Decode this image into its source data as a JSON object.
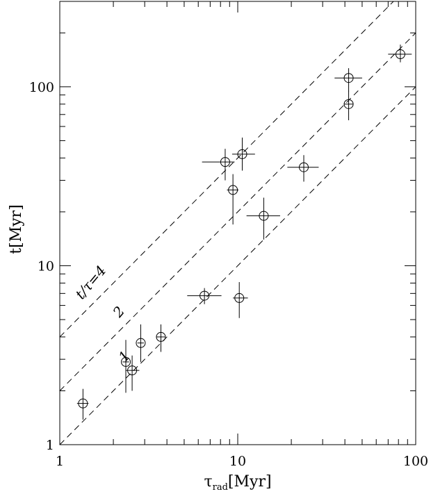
{
  "chart_data": {
    "type": "scatter",
    "title": "",
    "xlabel": "τ",
    "xlabel_sub": "rad",
    "xlabel_unit": "[Myr]",
    "ylabel": "t[Myr]",
    "xscale": "log",
    "yscale": "log",
    "xlim": [
      1,
      100
    ],
    "ylim": [
      1,
      300
    ],
    "x_ticks": [
      1,
      10,
      100
    ],
    "x_tick_labels": [
      "1",
      "10",
      "100"
    ],
    "y_ticks": [
      1,
      10,
      100
    ],
    "y_tick_labels": [
      "1",
      "10",
      "100"
    ],
    "grid": false,
    "legend": "none",
    "points": [
      {
        "x": 1.35,
        "y": 1.7,
        "x_err": [
          0.1,
          0.1
        ],
        "y_err": [
          0.32,
          0.35
        ]
      },
      {
        "x": 2.35,
        "y": 2.9,
        "x_err": [
          0.1,
          0.1
        ],
        "y_err": [
          0.95,
          0.95
        ]
      },
      {
        "x": 2.55,
        "y": 2.6,
        "x_err": [
          0.2,
          0.25
        ],
        "y_err": [
          0.6,
          0.55
        ]
      },
      {
        "x": 2.85,
        "y": 3.7,
        "x_err": [
          0.12,
          0.12
        ],
        "y_err": [
          0.8,
          1.0
        ]
      },
      {
        "x": 3.7,
        "y": 4.0,
        "x_err": [
          0.2,
          0.2
        ],
        "y_err": [
          0.7,
          0.7
        ]
      },
      {
        "x": 6.5,
        "y": 6.8,
        "x_err": [
          1.3,
          1.6
        ],
        "y_err": [
          0.7,
          0.7
        ]
      },
      {
        "x": 10.2,
        "y": 6.6,
        "x_err": [
          0.8,
          1.2
        ],
        "y_err": [
          1.5,
          1.5
        ]
      },
      {
        "x": 8.5,
        "y": 38,
        "x_err": [
          2.2,
          1.1
        ],
        "y_err": [
          8,
          7
        ]
      },
      {
        "x": 10.6,
        "y": 42,
        "x_err": [
          1.3,
          1.9
        ],
        "y_err": [
          8,
          10
        ]
      },
      {
        "x": 9.4,
        "y": 26.5,
        "x_err": [
          0.7,
          0.7
        ],
        "y_err": [
          9.5,
          6
        ]
      },
      {
        "x": 14.0,
        "y": 19,
        "x_err": [
          2.8,
          3.3
        ],
        "y_err": [
          5,
          5
        ]
      },
      {
        "x": 23.5,
        "y": 35.5,
        "x_err": [
          4.5,
          5
        ],
        "y_err": [
          6,
          6
        ]
      },
      {
        "x": 42.0,
        "y": 80,
        "x_err": [
          2.5,
          2.5
        ],
        "y_err": [
          15,
          15
        ]
      },
      {
        "x": 42.0,
        "y": 112,
        "x_err": [
          7,
          8
        ],
        "y_err": [
          18,
          15
        ]
      },
      {
        "x": 82.0,
        "y": 152,
        "x_err": [
          12,
          13
        ],
        "y_err": [
          15,
          20
        ]
      }
    ],
    "reference_lines": [
      {
        "ratio": 4,
        "label": "t/τ=4"
      },
      {
        "ratio": 2,
        "label": "2"
      },
      {
        "ratio": 1,
        "label": "1"
      }
    ]
  }
}
